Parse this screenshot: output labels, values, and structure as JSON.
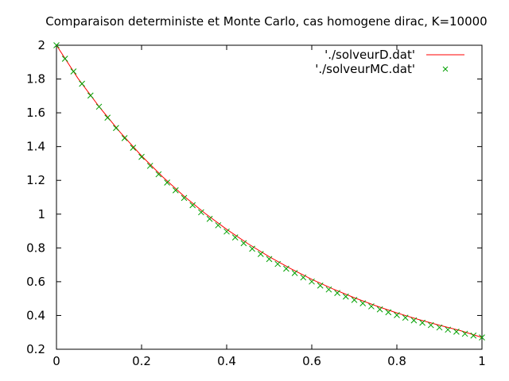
{
  "chart_data": {
    "type": "line",
    "title": "Comparaison deterministe et Monte Carlo, cas homogene dirac, K=10000",
    "xlabel": "",
    "ylabel": "",
    "xlim": [
      0,
      1
    ],
    "ylim": [
      0.2,
      2
    ],
    "xticks": [
      "0",
      "0.2",
      "0.4",
      "0.6",
      "0.8",
      "1"
    ],
    "yticks": [
      "0.2",
      "0.4",
      "0.6",
      "0.8",
      "1",
      "1.2",
      "1.4",
      "1.6",
      "1.8",
      "2"
    ],
    "grid": false,
    "legend_position": "top-right",
    "series": [
      {
        "name": "'./solveurD.dat'",
        "style": "line",
        "color": "#ff0000",
        "x": [
          0,
          0.05,
          0.1,
          0.15,
          0.2,
          0.25,
          0.3,
          0.35,
          0.4,
          0.45,
          0.5,
          0.55,
          0.6,
          0.65,
          0.7,
          0.75,
          0.8,
          0.85,
          0.9,
          0.95,
          1
        ],
        "y": [
          2.0,
          1.806,
          1.637,
          1.484,
          1.345,
          1.22,
          1.106,
          1.003,
          0.91,
          0.825,
          0.748,
          0.678,
          0.614,
          0.557,
          0.505,
          0.458,
          0.415,
          0.377,
          0.342,
          0.31,
          0.27
        ]
      },
      {
        "name": "'./solveurMC.dat'",
        "style": "points",
        "marker": "x",
        "color": "#00a000",
        "x": [
          0,
          0.02,
          0.04,
          0.06,
          0.08,
          0.1,
          0.12,
          0.14,
          0.16,
          0.18,
          0.2,
          0.22,
          0.24,
          0.26,
          0.28,
          0.3,
          0.32,
          0.34,
          0.36,
          0.38,
          0.4,
          0.42,
          0.44,
          0.46,
          0.48,
          0.5,
          0.52,
          0.54,
          0.56,
          0.58,
          0.6,
          0.62,
          0.64,
          0.66,
          0.68,
          0.7,
          0.72,
          0.74,
          0.76,
          0.78,
          0.8,
          0.82,
          0.84,
          0.86,
          0.88,
          0.9,
          0.92,
          0.94,
          0.96,
          0.98,
          1
        ],
        "y": [
          2.0,
          1.92,
          1.845,
          1.772,
          1.702,
          1.636,
          1.571,
          1.51,
          1.45,
          1.393,
          1.339,
          1.286,
          1.236,
          1.187,
          1.141,
          1.096,
          1.053,
          1.011,
          0.972,
          0.934,
          0.897,
          0.862,
          0.828,
          0.795,
          0.764,
          0.734,
          0.705,
          0.677,
          0.651,
          0.625,
          0.601,
          0.577,
          0.554,
          0.533,
          0.512,
          0.492,
          0.472,
          0.454,
          0.436,
          0.419,
          0.402,
          0.387,
          0.371,
          0.357,
          0.343,
          0.329,
          0.316,
          0.304,
          0.292,
          0.281,
          0.27
        ]
      }
    ]
  }
}
